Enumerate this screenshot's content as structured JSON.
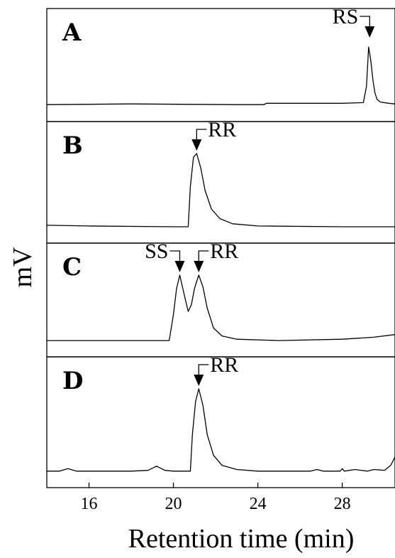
{
  "chart_data": {
    "type": "line",
    "title": "",
    "xlabel": "Retention time (min)",
    "ylabel": "mV",
    "xlim": [
      14,
      30.5
    ],
    "xticks": [
      16,
      20,
      24,
      28
    ],
    "xtick_labels": [
      "16",
      "20",
      "24",
      "28"
    ],
    "panels": [
      {
        "label": "A",
        "peaks": [
          {
            "name": "RS",
            "x": 29.3
          }
        ],
        "x": [
          14.0,
          18.0,
          23.0,
          24.3,
          24.4,
          28.0,
          29.0,
          29.15,
          29.25,
          29.35,
          29.45,
          29.55,
          29.65,
          29.8,
          30.2,
          30.5
        ],
        "y": [
          2,
          3,
          2,
          2,
          4,
          4,
          5,
          30,
          90,
          70,
          40,
          20,
          10,
          6,
          4,
          3
        ]
      },
      {
        "label": "B",
        "peaks": [
          {
            "name": "RR",
            "x": 21.1
          }
        ],
        "x": [
          14.0,
          16.0,
          20.0,
          20.7,
          20.8,
          20.95,
          21.1,
          21.3,
          21.5,
          21.8,
          22.2,
          22.8,
          24.0,
          28.0,
          30.5
        ],
        "y": [
          3,
          2,
          1,
          1,
          55,
          95,
          100,
          80,
          50,
          25,
          12,
          5,
          2,
          1,
          1
        ]
      },
      {
        "label": "C",
        "peaks": [
          {
            "name": "SS",
            "x": 20.3
          },
          {
            "name": "RR",
            "x": 21.2
          }
        ],
        "x": [
          14.0,
          19.8,
          20.0,
          20.15,
          20.3,
          20.5,
          20.7,
          20.85,
          21.0,
          21.2,
          21.4,
          21.6,
          21.9,
          22.3,
          23.0,
          25.0,
          28.0,
          29.5,
          30.5
        ],
        "y": [
          1,
          1,
          40,
          80,
          100,
          72,
          45,
          55,
          80,
          100,
          82,
          50,
          20,
          8,
          3,
          1,
          3,
          6,
          10
        ],
        "xticks_shown": false
      },
      {
        "label": "D",
        "peaks": [
          {
            "name": "RR",
            "x": 21.2
          }
        ],
        "x": [
          14.0,
          14.6,
          15.0,
          15.4,
          16.0,
          17.0,
          18.0,
          18.8,
          19.2,
          19.6,
          20.0,
          20.8,
          20.9,
          21.05,
          21.2,
          21.4,
          21.6,
          21.9,
          22.3,
          23.0,
          24.0,
          26.0,
          26.5,
          26.8,
          27.1,
          27.9,
          28.0,
          28.1,
          28.6,
          29.2,
          29.5,
          30.0,
          30.3,
          30.5
        ],
        "y": [
          1,
          1,
          4,
          1,
          1,
          1,
          1,
          2,
          7,
          2,
          1,
          1,
          45,
          85,
          100,
          80,
          45,
          20,
          8,
          3,
          1,
          1,
          1,
          3,
          1,
          1,
          4,
          1,
          3,
          1,
          3,
          2,
          8,
          18
        ]
      }
    ]
  }
}
